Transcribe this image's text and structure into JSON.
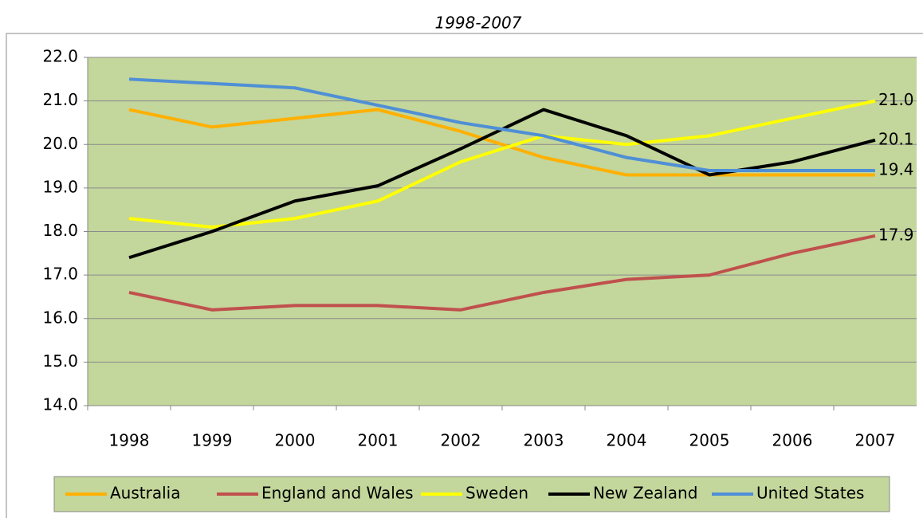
{
  "chart_data": {
    "type": "line",
    "title": "1998-2007",
    "categories": [
      "1998",
      "1999",
      "2000",
      "2001",
      "2002",
      "2003",
      "2004",
      "2005",
      "2006",
      "2007"
    ],
    "series": [
      {
        "name": "Australia",
        "color": "#ffb000",
        "values": [
          20.8,
          20.4,
          20.6,
          20.8,
          20.3,
          19.7,
          19.3,
          19.3,
          19.3,
          19.3
        ]
      },
      {
        "name": "England and Wales",
        "color": "#c0504d",
        "values": [
          16.6,
          16.2,
          16.3,
          16.3,
          16.2,
          16.6,
          16.9,
          17.0,
          17.5,
          17.9
        ],
        "value_labels": [
          null,
          null,
          null,
          null,
          null,
          null,
          null,
          null,
          null,
          "17.9"
        ]
      },
      {
        "name": "Sweden",
        "color": "#ffff00",
        "values": [
          18.3,
          18.1,
          18.3,
          18.7,
          19.6,
          20.2,
          20.0,
          20.2,
          20.6,
          21.0
        ],
        "value_labels": [
          null,
          null,
          null,
          null,
          null,
          null,
          null,
          null,
          null,
          "21.0"
        ]
      },
      {
        "name": "New Zealand",
        "color": "#000000",
        "values": [
          17.4,
          18.0,
          18.7,
          19.05,
          19.9,
          20.8,
          20.2,
          19.3,
          19.6,
          20.1
        ],
        "value_labels": [
          null,
          null,
          null,
          null,
          null,
          null,
          null,
          null,
          null,
          "20.1"
        ]
      },
      {
        "name": "United States",
        "color": "#4f8fd6",
        "values": [
          21.5,
          21.4,
          21.3,
          20.9,
          20.5,
          20.2,
          19.7,
          19.4,
          19.4,
          19.4
        ],
        "value_labels": [
          null,
          null,
          null,
          null,
          null,
          null,
          null,
          null,
          null,
          "19.4"
        ]
      }
    ],
    "ylim": [
      14,
      22
    ],
    "yticks": [
      {
        "value": 14,
        "label": "14.0"
      },
      {
        "value": 15,
        "label": "15.0"
      },
      {
        "value": 16,
        "label": "16.0"
      },
      {
        "value": 17,
        "label": "17.0"
      },
      {
        "value": 18,
        "label": "18.0"
      },
      {
        "value": 19,
        "label": "19.0"
      },
      {
        "value": 20,
        "label": "20.0"
      },
      {
        "value": 21,
        "label": "21.0"
      },
      {
        "value": 22,
        "label": "22.0"
      }
    ],
    "grid": true,
    "legend": "bottom",
    "background": "#c3d69b"
  }
}
